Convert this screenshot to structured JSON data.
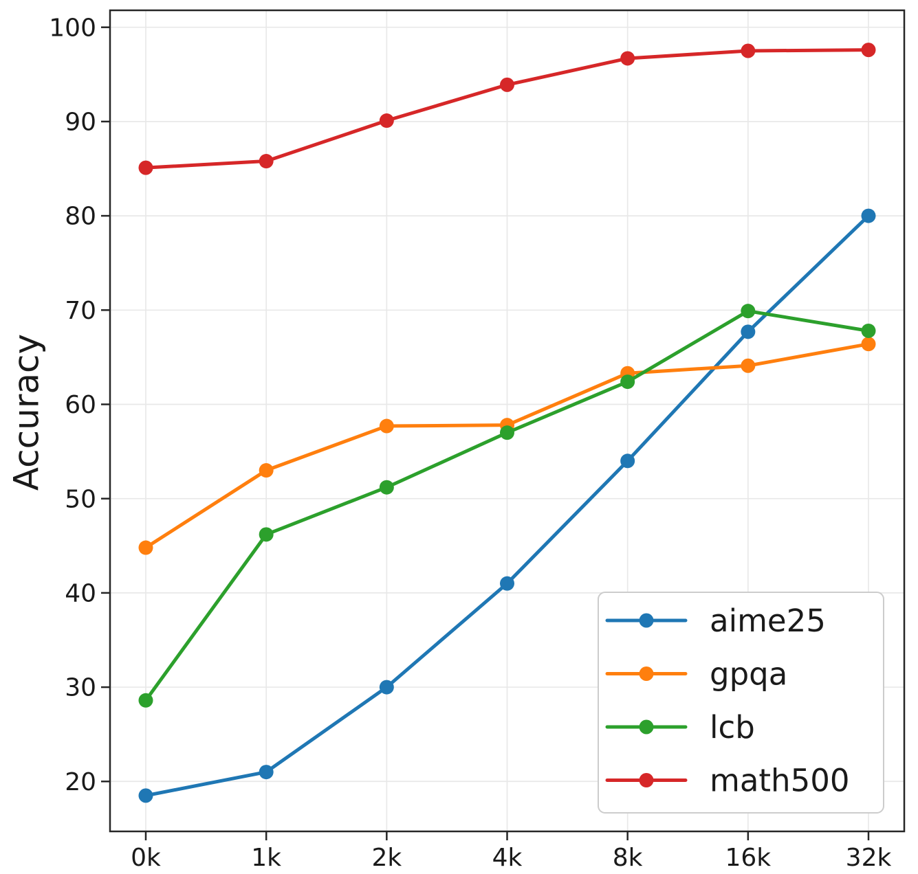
{
  "chart_data": {
    "type": "line",
    "title": "",
    "xlabel": "",
    "ylabel": "Accuracy",
    "categories": [
      "0k",
      "1k",
      "2k",
      "4k",
      "8k",
      "16k",
      "32k"
    ],
    "yticks": [
      20,
      30,
      40,
      50,
      60,
      70,
      80,
      90,
      100
    ],
    "ylim": [
      14.7,
      101.8
    ],
    "grid": true,
    "marker": "circle",
    "legend_position": "lower right",
    "series": [
      {
        "name": "aime25",
        "color": "#1f77b4",
        "values": [
          18.5,
          21.0,
          30.0,
          41.0,
          54.0,
          67.7,
          80.0
        ]
      },
      {
        "name": "gpqa",
        "color": "#ff7f0e",
        "values": [
          44.8,
          53.0,
          57.7,
          57.8,
          63.3,
          64.1,
          66.4
        ]
      },
      {
        "name": "lcb",
        "color": "#2ca02c",
        "values": [
          28.6,
          46.2,
          51.2,
          57.0,
          62.4,
          69.9,
          67.8
        ]
      },
      {
        "name": "math500",
        "color": "#d62728",
        "values": [
          85.1,
          85.8,
          90.1,
          93.9,
          96.7,
          97.5,
          97.6
        ]
      }
    ],
    "colors": {
      "background": "#ffffff",
      "grid": "#e8e8e8",
      "spine": "#262626",
      "tick": "#262626",
      "legend_border": "#cccccc",
      "legend_background": "#ffffff"
    }
  }
}
